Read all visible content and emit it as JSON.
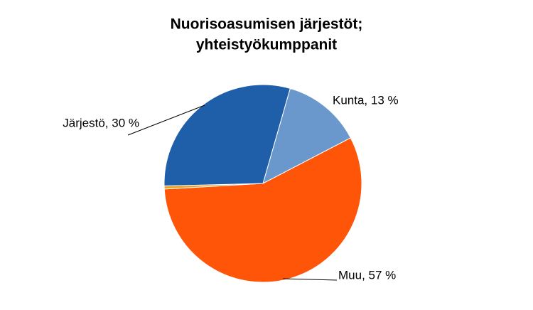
{
  "chart_data": {
    "type": "pie",
    "title": [
      "Nuorisoasumisen järjestöt;",
      "yhteistyökumppanit"
    ],
    "categories": [
      "Kunta",
      "Muu",
      null,
      "Järjestö"
    ],
    "values": [
      13,
      57,
      0.5,
      30
    ],
    "value_labels": [
      "Kunta, 13 %",
      "Muu, 57 %",
      null,
      "Järjestö, 30 %"
    ],
    "colors": [
      "#6a98cc",
      "#ff5508",
      "#e9a21a",
      "#1f5ea8"
    ]
  }
}
